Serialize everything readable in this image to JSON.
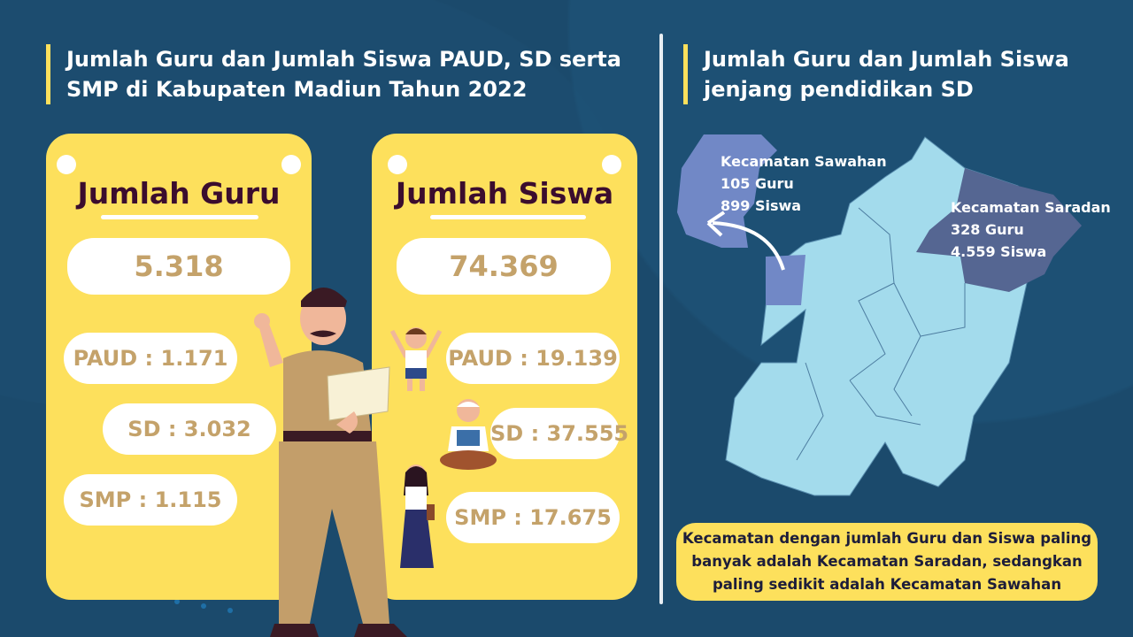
{
  "left": {
    "title": "Jumlah Guru dan Jumlah Siswa PAUD, SD serta SMP di Kabupaten Madiun Tahun 2022",
    "guru_card": {
      "title": "Jumlah Guru",
      "total": "5.318",
      "paud": "PAUD : 1.171",
      "sd": "SD : 3.032",
      "smp": "SMP : 1.115"
    },
    "siswa_card": {
      "title": "Jumlah Siswa",
      "total": "74.369",
      "paud": "PAUD : 19.139",
      "sd": "SD : 37.555",
      "smp": "SMP : 17.675"
    }
  },
  "right": {
    "title": "Jumlah Guru dan Jumlah Siswa jenjang pendidikan SD",
    "sawahan": {
      "name": "Kecamatan Sawahan",
      "guru": "105 Guru",
      "siswa": "899 Siswa"
    },
    "saradan": {
      "name": "Kecamatan Saradan",
      "guru": "328 Guru",
      "siswa": "4.559 Siswa"
    },
    "note": "Kecamatan dengan jumlah Guru dan Siswa paling banyak adalah Kecamatan Saradan, sedangkan paling sedikit adalah Kecamatan Sawahan"
  },
  "colors": {
    "background": "#1b4a6c",
    "card": "#fde05c",
    "number": "#c4a26a",
    "map": "#a3dbec",
    "sawahan": "#7188c6",
    "saradan": "#556692"
  }
}
